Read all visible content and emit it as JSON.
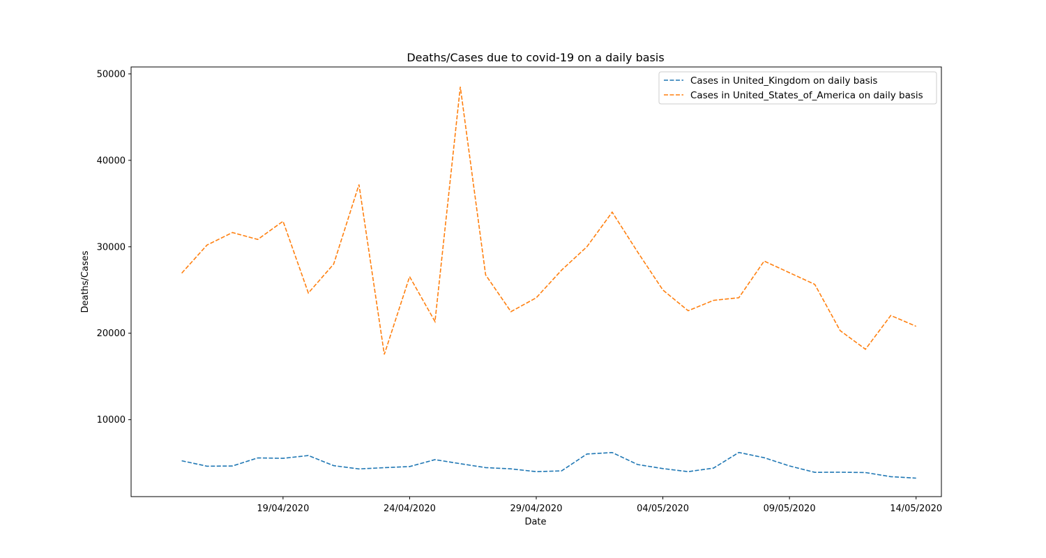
{
  "chart_data": {
    "type": "line",
    "title": "Deaths/Cases due to covid-19 on a daily basis",
    "xlabel": "Date",
    "ylabel": "Deaths/Cases",
    "x": [
      "2020-04-15",
      "2020-04-16",
      "2020-04-17",
      "2020-04-18",
      "2020-04-19",
      "2020-04-20",
      "2020-04-21",
      "2020-04-22",
      "2020-04-23",
      "2020-04-24",
      "2020-04-25",
      "2020-04-26",
      "2020-04-27",
      "2020-04-28",
      "2020-04-29",
      "2020-04-30",
      "2020-05-01",
      "2020-05-02",
      "2020-05-03",
      "2020-05-04",
      "2020-05-05",
      "2020-05-06",
      "2020-05-07",
      "2020-05-08",
      "2020-05-09",
      "2020-05-10",
      "2020-05-11",
      "2020-05-12",
      "2020-05-13",
      "2020-05-14"
    ],
    "xlim": [
      "2020-04-13",
      "2020-05-15"
    ],
    "xticks": [
      {
        "date": "2020-04-19",
        "label": "19/04/2020"
      },
      {
        "date": "2020-04-24",
        "label": "24/04/2020"
      },
      {
        "date": "2020-04-29",
        "label": "29/04/2020"
      },
      {
        "date": "2020-05-04",
        "label": "04/05/2020"
      },
      {
        "date": "2020-05-09",
        "label": "09/05/2020"
      },
      {
        "date": "2020-05-14",
        "label": "14/05/2020"
      }
    ],
    "ylim": [
      1100,
      50800
    ],
    "yticks": [
      10000,
      20000,
      30000,
      40000,
      50000
    ],
    "grid": false,
    "legend": "top-right",
    "series": [
      {
        "name": "Cases in United_Kingdom on daily basis",
        "color": "#1f77b4",
        "style": "dashed",
        "values": [
          5250,
          4620,
          4640,
          5580,
          5530,
          5850,
          4680,
          4300,
          4450,
          4580,
          5380,
          4910,
          4460,
          4310,
          3990,
          4080,
          6030,
          6200,
          4810,
          4340,
          3990,
          4400,
          6210,
          5600,
          4650,
          3910,
          3920,
          3880,
          3410,
          3240
        ]
      },
      {
        "name": "Cases in United_States_of_America on daily basis",
        "color": "#ff7f0e",
        "style": "dashed",
        "values": [
          26950,
          30200,
          31650,
          30850,
          32950,
          24650,
          28000,
          37200,
          17550,
          26550,
          21350,
          48500,
          26750,
          22500,
          24100,
          27300,
          30000,
          34000,
          29400,
          25000,
          22600,
          23800,
          24100,
          28350,
          27000,
          25650,
          20300,
          18150,
          22050,
          20800
        ]
      }
    ]
  }
}
